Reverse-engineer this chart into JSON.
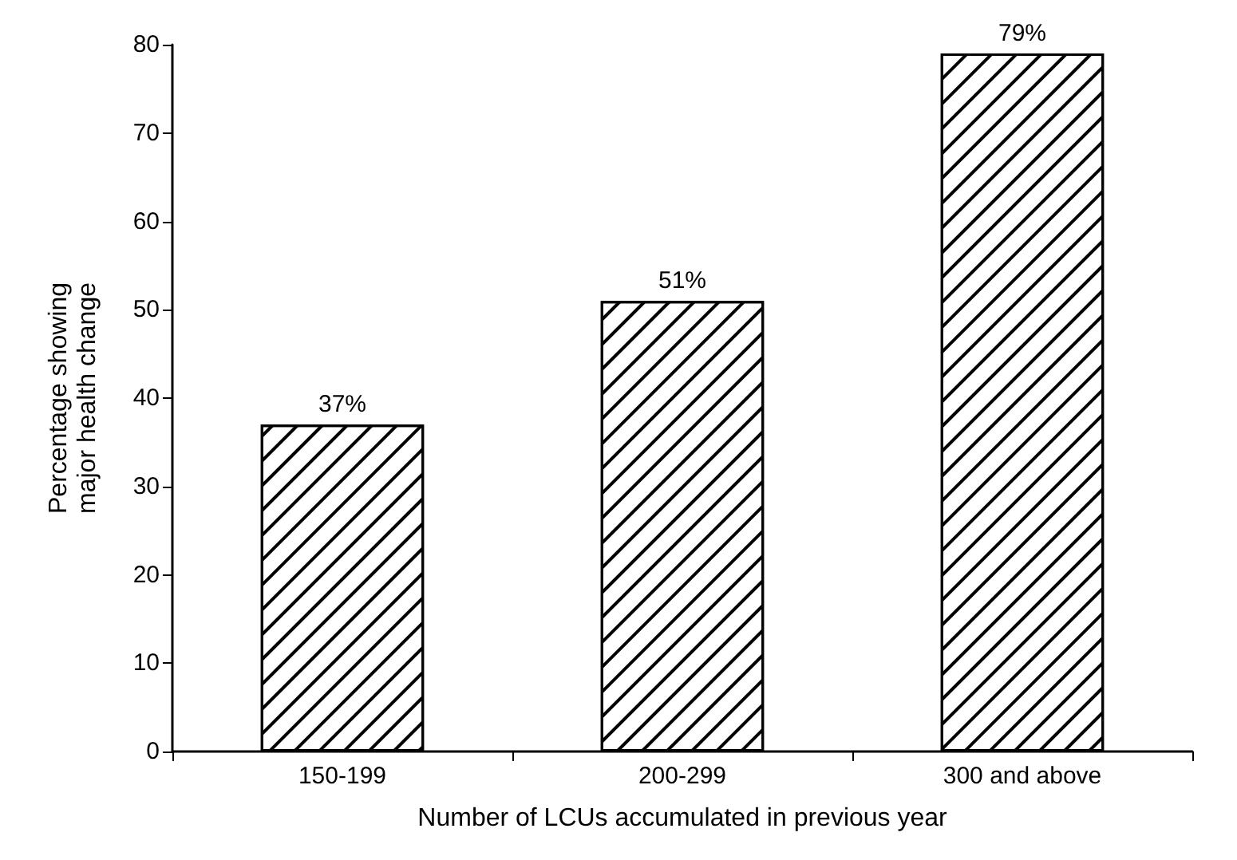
{
  "chart_data": {
    "type": "bar",
    "xlabel": "Number of LCUs accumulated in previous year",
    "ylabel": "Percentage showing\nmajor health change",
    "categories": [
      "150-199",
      "200-299",
      "300 and above"
    ],
    "values": [
      37,
      51,
      79
    ],
    "value_labels": [
      "37%",
      "51%",
      "79%"
    ],
    "color": "#ffffff",
    "ylim": [
      0,
      80
    ],
    "yticks": [
      0,
      10,
      20,
      30,
      40,
      50,
      60,
      70,
      80
    ],
    "grid": false
  }
}
